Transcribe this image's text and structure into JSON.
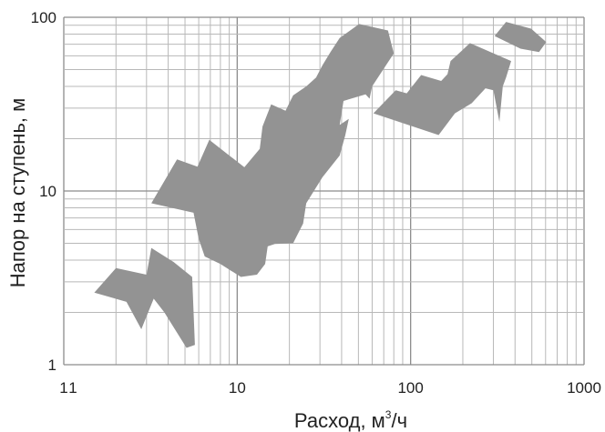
{
  "chart_data": {
    "type": "area",
    "x_scale": "log",
    "y_scale": "log",
    "xlim": [
      1,
      1000
    ],
    "ylim": [
      1,
      100
    ],
    "grid": true,
    "xlabel": "Расход, м³/ч",
    "ylabel": "Напор на ступень, м",
    "x_tick_labels": [
      "1",
      "10",
      "100",
      "1000"
    ],
    "y_tick_labels": [
      "1",
      "10",
      "100"
    ],
    "stray_x_label": "1",
    "fill_color": "#939393",
    "regions": [
      {
        "points": [
          [
            1.5,
            2.6
          ],
          [
            2.0,
            3.6
          ],
          [
            3.0,
            3.3
          ],
          [
            3.2,
            4.7
          ],
          [
            4.3,
            3.9
          ],
          [
            5.5,
            3.2
          ],
          [
            5.7,
            1.3
          ],
          [
            5.1,
            1.25
          ],
          [
            3.8,
            2.0
          ],
          [
            3.3,
            2.4
          ],
          [
            2.8,
            1.6
          ],
          [
            2.3,
            2.3
          ]
        ]
      },
      {
        "points": [
          [
            3.2,
            8.5
          ],
          [
            4.5,
            15.2
          ],
          [
            5.9,
            13.8
          ],
          [
            6.9,
            19.7
          ],
          [
            11.0,
            13.7
          ],
          [
            13.5,
            17.5
          ],
          [
            14.0,
            23.5
          ],
          [
            15.7,
            31.5
          ],
          [
            19.0,
            29.0
          ],
          [
            21.0,
            35.5
          ],
          [
            25.0,
            40.0
          ],
          [
            28.5,
            45.0
          ],
          [
            31.0,
            53.0
          ],
          [
            34.5,
            63.0
          ],
          [
            39.0,
            76.0
          ],
          [
            50.5,
            91.5
          ],
          [
            74.0,
            84.0
          ],
          [
            80.0,
            62.0
          ],
          [
            60.0,
            40.0
          ],
          [
            58.0,
            34.0
          ],
          [
            55.0,
            36.0
          ],
          [
            41.0,
            33.0
          ],
          [
            39.0,
            24.0
          ],
          [
            44.0,
            26.0
          ],
          [
            42.0,
            21.0
          ],
          [
            39.0,
            16.0
          ],
          [
            31.0,
            12.0
          ],
          [
            25.0,
            8.5
          ],
          [
            24.0,
            6.5
          ],
          [
            21.0,
            5.0
          ],
          [
            16.5,
            4.95
          ],
          [
            15.0,
            4.8
          ],
          [
            14.5,
            3.8
          ],
          [
            13.0,
            3.3
          ],
          [
            10.5,
            3.2
          ],
          [
            8.0,
            3.8
          ],
          [
            6.5,
            4.2
          ],
          [
            6.0,
            5.3
          ],
          [
            5.6,
            7.5
          ]
        ]
      },
      {
        "points": [
          [
            61.0,
            28.0
          ],
          [
            82.0,
            38.0
          ],
          [
            95.0,
            36.5
          ],
          [
            115.0,
            46.5
          ],
          [
            150.0,
            43.0
          ],
          [
            163.0,
            47.0
          ],
          [
            170.0,
            56.0
          ],
          [
            220.0,
            71.0
          ],
          [
            380.0,
            56.0
          ],
          [
            355.0,
            45.0
          ],
          [
            340.0,
            40.0
          ],
          [
            325.0,
            25.0
          ],
          [
            300.0,
            38.0
          ],
          [
            270.0,
            39.0
          ],
          [
            225.0,
            32.0
          ],
          [
            180.0,
            28.0
          ],
          [
            145.0,
            21.0
          ]
        ]
      },
      {
        "points": [
          [
            305.0,
            78.0
          ],
          [
            355.0,
            94.0
          ],
          [
            495.0,
            86.0
          ],
          [
            605.0,
            72.0
          ],
          [
            550.0,
            63.0
          ],
          [
            430.0,
            66.0
          ]
        ]
      }
    ]
  }
}
